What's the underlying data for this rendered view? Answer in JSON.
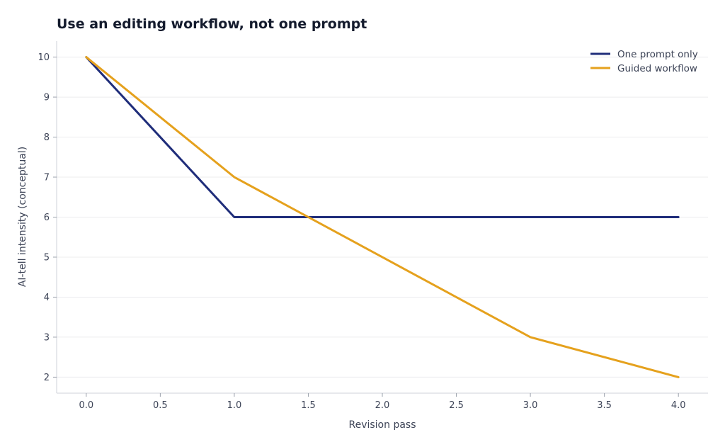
{
  "chart_data": {
    "type": "line",
    "title": "Use an editing workflow, not one prompt",
    "xlabel": "Revision pass",
    "ylabel": "AI-tell intensity (conceptual)",
    "x": [
      0,
      1,
      2,
      3,
      4
    ],
    "xlim": [
      -0.2,
      4.2
    ],
    "ylim": [
      1.6,
      10.4
    ],
    "x_ticks": [
      "0.0",
      "0.5",
      "1.0",
      "1.5",
      "2.0",
      "2.5",
      "3.0",
      "3.5",
      "4.0"
    ],
    "y_ticks": [
      "2",
      "3",
      "4",
      "5",
      "6",
      "7",
      "8",
      "9",
      "10"
    ],
    "grid": "horizontal",
    "legend_position": "top-right",
    "series": [
      {
        "name": "One prompt only",
        "values": [
          10,
          6,
          6,
          6,
          6
        ],
        "color": "#1f2d7a"
      },
      {
        "name": "Guided workflow",
        "values": [
          10,
          7,
          5,
          3,
          2
        ],
        "color": "#e5a11d"
      }
    ]
  }
}
